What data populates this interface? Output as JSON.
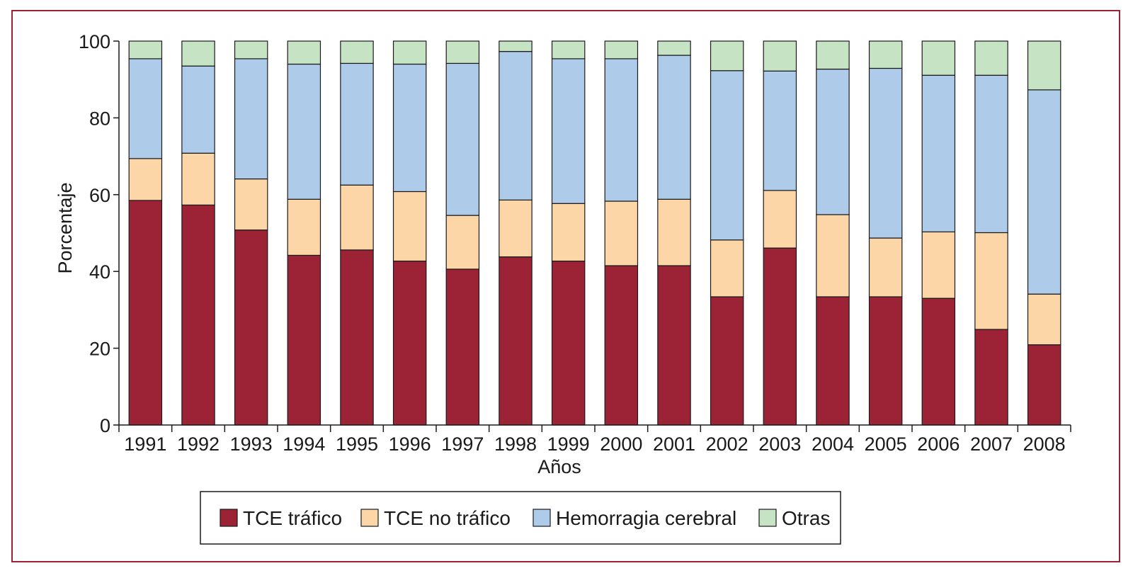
{
  "chart_data": {
    "type": "bar",
    "stacked": true,
    "title": "",
    "xlabel": "Años",
    "ylabel": "Porcentaje",
    "ylim": [
      0,
      100
    ],
    "yticks": [
      0,
      20,
      40,
      60,
      80,
      100
    ],
    "grid": false,
    "legend_position": "bottom",
    "categories": [
      "1991",
      "1992",
      "1993",
      "1994",
      "1995",
      "1996",
      "1997",
      "1998",
      "1999",
      "2000",
      "2001",
      "2002",
      "2003",
      "2004",
      "2005",
      "2006",
      "2007",
      "2008"
    ],
    "series": [
      {
        "name": "TCE tráfico",
        "color": "#9b2335",
        "values": [
          58.5,
          57.3,
          50.8,
          44.2,
          45.6,
          42.7,
          40.6,
          43.8,
          42.7,
          41.5,
          41.5,
          33.4,
          46.1,
          33.4,
          33.4,
          33.0,
          24.9,
          20.9
        ]
      },
      {
        "name": "TCE no tráfico",
        "color": "#fdd6a8",
        "values": [
          10.9,
          13.5,
          13.3,
          14.6,
          16.9,
          18.1,
          14.0,
          14.8,
          15.0,
          16.8,
          17.3,
          14.8,
          15.0,
          21.4,
          15.3,
          17.3,
          25.2,
          13.2
        ]
      },
      {
        "name": "Hemorragia cerebral",
        "color": "#aecce9",
        "values": [
          26.0,
          22.7,
          31.3,
          35.2,
          31.7,
          33.2,
          39.6,
          38.7,
          37.7,
          37.1,
          37.5,
          44.1,
          31.1,
          37.9,
          44.2,
          40.8,
          41.0,
          53.2
        ]
      },
      {
        "name": "Otras",
        "color": "#c6e3c4",
        "values": [
          4.6,
          6.5,
          4.6,
          6.0,
          5.8,
          6.0,
          5.8,
          2.7,
          4.6,
          4.6,
          3.7,
          7.7,
          7.8,
          7.3,
          7.1,
          8.9,
          8.9,
          12.7
        ]
      }
    ]
  }
}
